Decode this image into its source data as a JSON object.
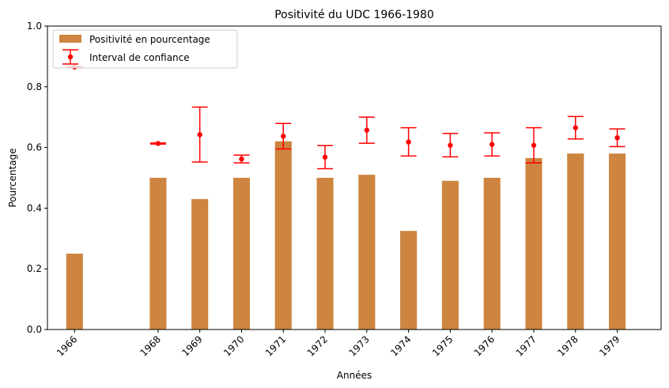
{
  "chart_data": {
    "type": "bar",
    "title": "Positivité du UDC 1966-1980",
    "xlabel": "Années",
    "ylabel": "Pourcentage",
    "ylim": [
      0,
      1.0
    ],
    "yticks": [
      "0.0",
      "0.2",
      "0.4",
      "0.6",
      "0.8",
      "1.0"
    ],
    "x": [
      1966,
      1968,
      1969,
      1970,
      1971,
      1972,
      1973,
      1974,
      1975,
      1976,
      1977,
      1978,
      1979
    ],
    "categories": [
      "1966",
      "1968",
      "1969",
      "1970",
      "1971",
      "1972",
      "1973",
      "1974",
      "1975",
      "1976",
      "1977",
      "1978",
      "1979"
    ],
    "series": [
      {
        "name": "Positivité en pourcentage",
        "kind": "bar",
        "color": "#cd853f",
        "values": [
          0.25,
          0.5,
          0.43,
          0.5,
          0.62,
          0.5,
          0.51,
          0.325,
          0.49,
          0.5,
          0.565,
          0.58,
          0.58
        ]
      },
      {
        "name": "Interval de confiance",
        "kind": "errorbar",
        "color": "#ff0000",
        "values": [
          0.865,
          0.613,
          0.642,
          0.562,
          0.637,
          0.568,
          0.657,
          0.618,
          0.607,
          0.61,
          0.607,
          0.665,
          0.632
        ],
        "lower": [
          0.863,
          0.611,
          0.552,
          0.549,
          0.595,
          0.53,
          0.614,
          0.572,
          0.569,
          0.572,
          0.549,
          0.628,
          0.603
        ],
        "upper": [
          0.867,
          0.615,
          0.733,
          0.575,
          0.679,
          0.606,
          0.7,
          0.665,
          0.646,
          0.648,
          0.665,
          0.702,
          0.661
        ]
      }
    ],
    "legend_position": "top-left",
    "grid": false
  }
}
